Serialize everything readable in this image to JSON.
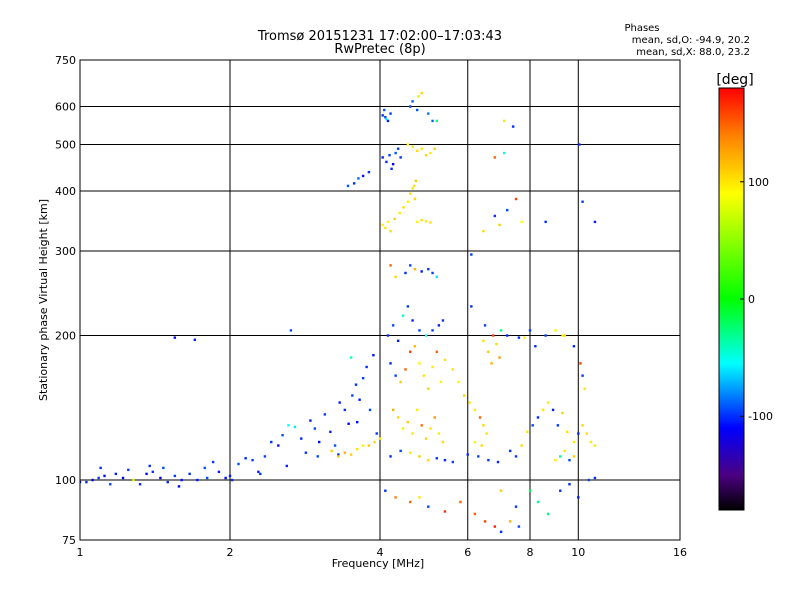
{
  "chart_data": {
    "type": "scatter",
    "title": "Tromsø 20151231 17:02:00–17:03:43",
    "subtitle": "RwPretec (8p)",
    "annotation": {
      "heading": "Phases",
      "line1": "mean, sd,O: -94.9, 20.2",
      "line2": "mean, sd,X:  88.0, 23.2"
    },
    "xlabel": "Frequency [MHz]",
    "ylabel": "Stationary phase Virtual Height [km]",
    "x_scale": "log",
    "y_scale": "log",
    "xlim": [
      1,
      16
    ],
    "ylim": [
      75,
      750
    ],
    "grid": true,
    "x_ticks": [
      {
        "value": 1,
        "label": "1"
      },
      {
        "value": 2,
        "label": "2"
      },
      {
        "value": 4,
        "label": "4"
      },
      {
        "value": 6,
        "label": "6"
      },
      {
        "value": 8,
        "label": "8"
      },
      {
        "value": 10,
        "label": "10"
      },
      {
        "value": 16,
        "label": "16"
      }
    ],
    "y_ticks": [
      {
        "value": 75,
        "label": "75"
      },
      {
        "value": 100,
        "label": "100"
      },
      {
        "value": 200,
        "label": "200"
      },
      {
        "value": 300,
        "label": "300"
      },
      {
        "value": 400,
        "label": "400"
      },
      {
        "value": 500,
        "label": "500"
      },
      {
        "value": 600,
        "label": "600"
      },
      {
        "value": 750,
        "label": "750"
      }
    ],
    "colorbar": {
      "label": "[deg]",
      "range": [
        -180,
        180
      ],
      "ticks": [
        {
          "value": 100,
          "label": "100"
        },
        {
          "value": 0,
          "label": "0"
        },
        {
          "value": -100,
          "label": "-100"
        }
      ],
      "stops": [
        {
          "value": -180,
          "color": "#000000"
        },
        {
          "value": -150,
          "color": "#4b0082"
        },
        {
          "value": -110,
          "color": "#0000ff"
        },
        {
          "value": -55,
          "color": "#00ffff"
        },
        {
          "value": 0,
          "color": "#00ff00"
        },
        {
          "value": 90,
          "color": "#ffff00"
        },
        {
          "value": 140,
          "color": "#ff7f00"
        },
        {
          "value": 180,
          "color": "#ff0000"
        }
      ]
    },
    "points": [
      [
        1.0,
        99,
        -105
      ],
      [
        1.03,
        99,
        -100
      ],
      [
        1.06,
        100,
        -110
      ],
      [
        1.09,
        101,
        -98
      ],
      [
        1.12,
        102,
        -108
      ],
      [
        1.15,
        98,
        -95
      ],
      [
        1.18,
        103,
        -104
      ],
      [
        1.22,
        101,
        -112
      ],
      [
        1.1,
        106,
        -100
      ],
      [
        1.25,
        105,
        -96
      ],
      [
        1.28,
        100,
        75
      ],
      [
        1.32,
        98,
        -102
      ],
      [
        1.36,
        103,
        -108
      ],
      [
        1.4,
        104,
        -99
      ],
      [
        1.45,
        101,
        -115
      ],
      [
        1.5,
        99,
        -103
      ],
      [
        1.55,
        102,
        -97
      ],
      [
        1.6,
        100,
        -106
      ],
      [
        1.38,
        107,
        -101
      ],
      [
        1.47,
        106,
        -94
      ],
      [
        1.58,
        97,
        -110
      ],
      [
        1.66,
        103,
        -100
      ],
      [
        1.72,
        100,
        -105
      ],
      [
        1.78,
        106,
        -92
      ],
      [
        1.85,
        109,
        -98
      ],
      [
        1.9,
        104,
        -103
      ],
      [
        1.96,
        101,
        -108
      ],
      [
        2.02,
        100,
        -100
      ],
      [
        2.08,
        108,
        -94
      ],
      [
        2.15,
        111,
        -101
      ],
      [
        2.22,
        110,
        -97
      ],
      [
        2.28,
        104,
        -104
      ],
      [
        2.35,
        112,
        -96
      ],
      [
        2.42,
        120,
        -100
      ],
      [
        2.5,
        118,
        -106
      ],
      [
        2.55,
        124,
        -92
      ],
      [
        2.62,
        130,
        -55
      ],
      [
        2.7,
        129,
        -60
      ],
      [
        2.78,
        122,
        -102
      ],
      [
        2.84,
        114,
        -98
      ],
      [
        2.9,
        133,
        -104
      ],
      [
        2.96,
        128,
        -95
      ],
      [
        3.02,
        120,
        -108
      ],
      [
        3.1,
        137,
        -98
      ],
      [
        3.18,
        126,
        -101
      ],
      [
        3.25,
        118,
        -93
      ],
      [
        3.32,
        145,
        -104
      ],
      [
        3.4,
        140,
        -99
      ],
      [
        3.46,
        131,
        -110
      ],
      [
        3.52,
        150,
        -96
      ],
      [
        3.58,
        158,
        -101
      ],
      [
        3.64,
        147,
        -105
      ],
      [
        3.7,
        163,
        -97
      ],
      [
        3.76,
        172,
        -102
      ],
      [
        3.82,
        140,
        -94
      ],
      [
        3.88,
        182,
        -106
      ],
      [
        3.94,
        125,
        -99
      ],
      [
        3.6,
        132,
        -108
      ],
      [
        3.3,
        113,
        -100
      ],
      [
        3.0,
        112,
        -95
      ],
      [
        2.6,
        107,
        -103
      ],
      [
        2.3,
        103,
        -97
      ],
      [
        2.0,
        102,
        -104
      ],
      [
        1.8,
        101,
        -92
      ],
      [
        1.7,
        196,
        -105
      ],
      [
        1.55,
        198,
        -108
      ],
      [
        2.65,
        205,
        -95
      ],
      [
        3.55,
        415,
        -100
      ],
      [
        3.7,
        430,
        -105
      ],
      [
        3.45,
        410,
        -92
      ],
      [
        3.8,
        438,
        -99
      ],
      [
        3.62,
        425,
        -88
      ],
      [
        3.5,
        180,
        -40
      ],
      [
        3.2,
        115,
        110
      ],
      [
        3.3,
        112,
        115
      ],
      [
        3.4,
        114,
        120
      ],
      [
        3.5,
        113,
        108
      ],
      [
        3.6,
        116,
        102
      ],
      [
        3.7,
        118,
        98
      ],
      [
        3.8,
        118,
        112
      ],
      [
        3.9,
        120,
        106
      ],
      [
        4.0,
        122,
        95
      ],
      [
        4.05,
        575,
        -100
      ],
      [
        4.1,
        570,
        -95
      ],
      [
        4.15,
        560,
        -105
      ],
      [
        4.2,
        580,
        -98
      ],
      [
        4.12,
        565,
        -60
      ],
      [
        4.08,
        590,
        -92
      ],
      [
        4.05,
        470,
        -104
      ],
      [
        4.12,
        460,
        -100
      ],
      [
        4.18,
        475,
        -96
      ],
      [
        4.25,
        455,
        -108
      ],
      [
        4.3,
        480,
        -92
      ],
      [
        4.22,
        445,
        -101
      ],
      [
        4.35,
        490,
        -97
      ],
      [
        4.4,
        470,
        -99
      ],
      [
        4.05,
        340,
        95
      ],
      [
        4.1,
        335,
        100
      ],
      [
        4.15,
        345,
        92
      ],
      [
        4.2,
        330,
        105
      ],
      [
        4.28,
        350,
        108
      ],
      [
        4.38,
        360,
        98
      ],
      [
        4.46,
        370,
        102
      ],
      [
        4.55,
        380,
        96
      ],
      [
        4.6,
        395,
        104
      ],
      [
        4.65,
        405,
        99
      ],
      [
        4.7,
        385,
        107
      ],
      [
        4.72,
        420,
        112
      ],
      [
        4.68,
        410,
        100
      ],
      [
        4.75,
        345,
        95
      ],
      [
        4.85,
        348,
        101
      ],
      [
        4.95,
        346,
        98
      ],
      [
        5.05,
        344,
        102
      ],
      [
        4.65,
        615,
        -90
      ],
      [
        4.6,
        600,
        -95
      ],
      [
        4.75,
        590,
        -92
      ],
      [
        4.78,
        630,
        100
      ],
      [
        4.85,
        640,
        105
      ],
      [
        5.0,
        580,
        -85
      ],
      [
        5.1,
        560,
        -88
      ],
      [
        5.2,
        560,
        -30
      ],
      [
        4.55,
        500,
        95
      ],
      [
        4.65,
        495,
        100
      ],
      [
        4.75,
        485,
        103
      ],
      [
        4.85,
        490,
        99
      ],
      [
        4.95,
        475,
        106
      ],
      [
        5.05,
        480,
        98
      ],
      [
        5.15,
        490,
        110
      ],
      [
        4.5,
        270,
        -100
      ],
      [
        4.6,
        280,
        -95
      ],
      [
        4.7,
        275,
        120
      ],
      [
        4.85,
        272,
        -104
      ],
      [
        5.0,
        275,
        -98
      ],
      [
        5.1,
        270,
        -96
      ],
      [
        5.2,
        265,
        -60
      ],
      [
        4.3,
        265,
        105
      ],
      [
        4.2,
        280,
        150
      ],
      [
        4.15,
        200,
        -100
      ],
      [
        4.25,
        210,
        -95
      ],
      [
        4.35,
        195,
        -105
      ],
      [
        4.45,
        220,
        -40
      ],
      [
        4.55,
        230,
        -98
      ],
      [
        4.65,
        215,
        -102
      ],
      [
        4.8,
        205,
        -96
      ],
      [
        4.95,
        200,
        -50
      ],
      [
        5.1,
        205,
        -95
      ],
      [
        5.25,
        210,
        -103
      ],
      [
        5.35,
        215,
        -99
      ],
      [
        4.2,
        175,
        -100
      ],
      [
        4.3,
        165,
        -95
      ],
      [
        4.4,
        160,
        110
      ],
      [
        4.5,
        170,
        150
      ],
      [
        4.6,
        185,
        160
      ],
      [
        4.7,
        190,
        120
      ],
      [
        4.8,
        175,
        95
      ],
      [
        4.9,
        165,
        100
      ],
      [
        5.0,
        155,
        108
      ],
      [
        5.1,
        172,
        98
      ],
      [
        5.2,
        185,
        150
      ],
      [
        5.3,
        160,
        95
      ],
      [
        5.4,
        178,
        102
      ],
      [
        4.25,
        140,
        120
      ],
      [
        4.35,
        135,
        105
      ],
      [
        4.45,
        128,
        96
      ],
      [
        4.55,
        132,
        110
      ],
      [
        4.65,
        125,
        100
      ],
      [
        4.75,
        140,
        98
      ],
      [
        4.85,
        130,
        145
      ],
      [
        4.95,
        122,
        106
      ],
      [
        5.05,
        128,
        100
      ],
      [
        5.15,
        135,
        130
      ],
      [
        5.25,
        125,
        97
      ],
      [
        5.35,
        120,
        104
      ],
      [
        4.2,
        112,
        -100
      ],
      [
        4.4,
        115,
        -95
      ],
      [
        4.6,
        114,
        100
      ],
      [
        4.8,
        112,
        110
      ],
      [
        5.0,
        110,
        105
      ],
      [
        5.2,
        111,
        -98
      ],
      [
        5.4,
        110,
        -102
      ],
      [
        5.6,
        109,
        -96
      ],
      [
        4.1,
        95,
        -100
      ],
      [
        4.3,
        92,
        140
      ],
      [
        4.6,
        90,
        150
      ],
      [
        5.0,
        88,
        -95
      ],
      [
        5.4,
        86,
        165
      ],
      [
        4.8,
        92,
        100
      ],
      [
        5.6,
        170,
        100
      ],
      [
        5.75,
        160,
        95
      ],
      [
        5.9,
        150,
        108
      ],
      [
        6.05,
        145,
        102
      ],
      [
        6.2,
        140,
        98
      ],
      [
        6.35,
        135,
        150
      ],
      [
        6.45,
        130,
        106
      ],
      [
        6.55,
        125,
        100
      ],
      [
        6.2,
        120,
        95
      ],
      [
        6.4,
        118,
        104
      ],
      [
        6.0,
        113,
        -100
      ],
      [
        6.3,
        112,
        -95
      ],
      [
        6.6,
        110,
        -98
      ],
      [
        6.9,
        109,
        -102
      ],
      [
        6.45,
        195,
        100
      ],
      [
        6.6,
        185,
        110
      ],
      [
        6.7,
        175,
        120
      ],
      [
        6.75,
        200,
        160
      ],
      [
        6.85,
        192,
        105
      ],
      [
        6.95,
        180,
        130
      ],
      [
        6.1,
        230,
        -100
      ],
      [
        6.5,
        210,
        -95
      ],
      [
        7.0,
        205,
        -30
      ],
      [
        7.2,
        200,
        -102
      ],
      [
        6.1,
        295,
        -98
      ],
      [
        6.45,
        330,
        104
      ],
      [
        6.8,
        355,
        -100
      ],
      [
        6.95,
        340,
        108
      ],
      [
        7.2,
        365,
        -95
      ],
      [
        7.5,
        385,
        160
      ],
      [
        7.7,
        345,
        90
      ],
      [
        7.1,
        560,
        100
      ],
      [
        7.4,
        545,
        -100
      ],
      [
        7.1,
        480,
        -50
      ],
      [
        6.8,
        470,
        150
      ],
      [
        7.6,
        198,
        -100
      ],
      [
        7.8,
        198,
        95
      ],
      [
        6.2,
        85,
        150
      ],
      [
        6.5,
        82,
        160
      ],
      [
        6.8,
        80,
        170
      ],
      [
        7.0,
        78,
        -100
      ],
      [
        7.3,
        82,
        120
      ],
      [
        7.6,
        80,
        -95
      ],
      [
        7.5,
        88,
        -98
      ],
      [
        5.8,
        90,
        150
      ],
      [
        7.0,
        95,
        110
      ],
      [
        7.3,
        115,
        -100
      ],
      [
        7.5,
        112,
        -98
      ],
      [
        7.7,
        118,
        104
      ],
      [
        7.9,
        126,
        100
      ],
      [
        8.1,
        130,
        -95
      ],
      [
        8.3,
        135,
        -102
      ],
      [
        8.5,
        140,
        100
      ],
      [
        8.7,
        145,
        96
      ],
      [
        8.9,
        140,
        -104
      ],
      [
        9.1,
        130,
        -99
      ],
      [
        9.3,
        138,
        108
      ],
      [
        9.5,
        126,
        100
      ],
      [
        9.8,
        120,
        95
      ],
      [
        10.0,
        125,
        -100
      ],
      [
        10.2,
        130,
        106
      ],
      [
        10.4,
        125,
        102
      ],
      [
        10.6,
        120,
        98
      ],
      [
        10.8,
        118,
        100
      ],
      [
        9.0,
        110,
        96
      ],
      [
        9.2,
        112,
        -30
      ],
      [
        9.4,
        115,
        100
      ],
      [
        9.6,
        110,
        -95
      ],
      [
        9.8,
        112,
        108
      ],
      [
        8.2,
        190,
        -100
      ],
      [
        8.6,
        200,
        -95
      ],
      [
        9.0,
        205,
        95
      ],
      [
        9.4,
        200,
        108
      ],
      [
        9.8,
        190,
        -102
      ],
      [
        10.1,
        175,
        160
      ],
      [
        10.2,
        165,
        -98
      ],
      [
        10.3,
        155,
        100
      ],
      [
        8.0,
        95,
        -20
      ],
      [
        8.3,
        90,
        -30
      ],
      [
        8.7,
        85,
        -25
      ],
      [
        9.2,
        95,
        -100
      ],
      [
        9.6,
        98,
        -102
      ],
      [
        10.5,
        100,
        -95
      ],
      [
        10.8,
        101,
        -100
      ],
      [
        10.0,
        92,
        -105
      ],
      [
        10.05,
        500,
        -100
      ],
      [
        10.2,
        380,
        -98
      ],
      [
        10.8,
        345,
        -104
      ],
      [
        9.3,
        200,
        96
      ],
      [
        8.6,
        345,
        -100
      ],
      [
        8.0,
        205,
        -95
      ]
    ]
  }
}
